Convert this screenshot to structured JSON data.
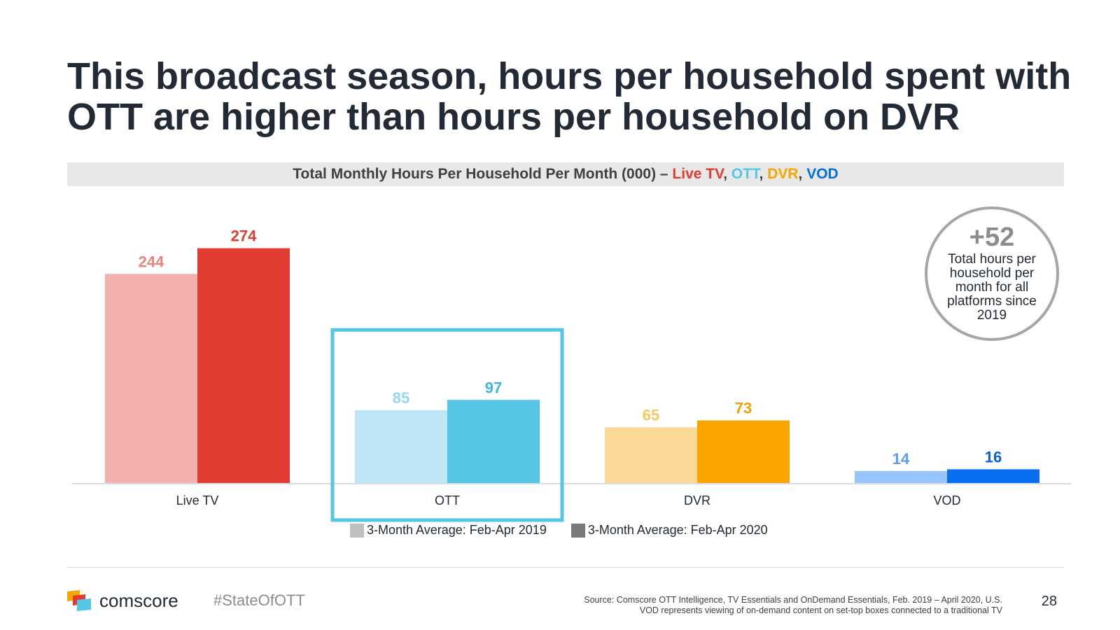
{
  "title": {
    "line1": "This broadcast season, hours per household spent with",
    "line2": "OTT are higher than hours per household on DVR"
  },
  "subtitle": {
    "prefix": "Total Monthly Hours Per Household Per Month (000) – ",
    "live": "Live TV",
    "ott": "OTT",
    "dvr": "DVR",
    "vod": "VOD",
    "sep": ", "
  },
  "chart_data": {
    "type": "bar",
    "title": "Total Monthly Hours Per Household Per Month (000) – Live TV, OTT, DVR, VOD",
    "categories": [
      "Live TV",
      "OTT",
      "DVR",
      "VOD"
    ],
    "series": [
      {
        "name": "3-Month Average: Feb-Apr 2019",
        "values": [
          244,
          85,
          65,
          14
        ]
      },
      {
        "name": "3-Month Average: Feb-Apr 2020",
        "values": [
          274,
          97,
          73,
          16
        ]
      }
    ],
    "colors_2019": [
      "#f2b1ac",
      "#bde7f4",
      "#fdd998",
      "#99c3fb"
    ],
    "colors_2020": [
      "#e03c31",
      "#56c6e6",
      "#fca500",
      "#0a6ef1"
    ],
    "label_colors_2019": [
      "#e8857c",
      "#92d9ef",
      "#f9c860",
      "#5b9df5"
    ],
    "label_colors_2020": [
      "#e03c31",
      "#3fb8df",
      "#f2a000",
      "#0a5fd8"
    ],
    "highlight_category": "OTT",
    "highlight_color": "#56c6e6",
    "ylim": [
      0,
      290
    ],
    "xlabel": "",
    "ylabel": "",
    "legend_position": "bottom",
    "grid": false
  },
  "legend": {
    "items": [
      {
        "label": "3-Month Average: Feb-Apr 2019",
        "color": "#c0c0c0"
      },
      {
        "label": "3-Month Average: Feb-Apr 2020",
        "color": "#7a7a7a"
      }
    ]
  },
  "callout": {
    "value": "+52",
    "text": "Total hours per household per month for all platforms since 2019"
  },
  "footer": {
    "brand": "comscore",
    "hashtag": "#StateOfOTT",
    "source_line1": "Source: Comscore OTT Intelligence, TV Essentials and OnDemand Essentials, Feb. 2019 – April 2020, U.S.",
    "source_line2": "VOD represents viewing of on-demand content on set-top boxes connected to a traditional TV",
    "page_number": "28"
  }
}
